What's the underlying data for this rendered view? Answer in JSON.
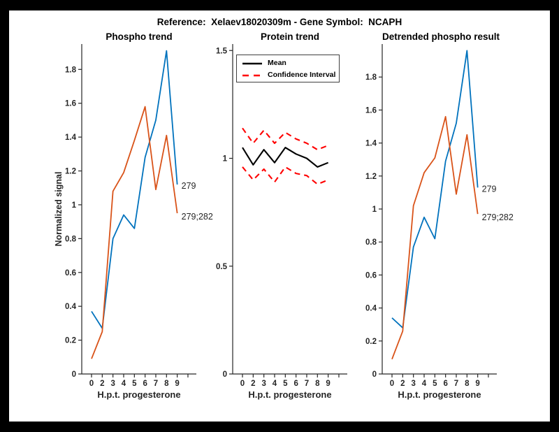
{
  "suptitle": "Reference:  Xelaev18020309m - Gene Symbol:  NCAPH",
  "colors": {
    "page_bg": "#000000",
    "figure_bg": "#FFFFFF",
    "axis_text": "#262626",
    "series_blue": "#0072BD",
    "series_orange": "#D95319",
    "ci_red": "#FF0000",
    "mean_black": "#000000"
  },
  "chart_data": [
    {
      "type": "line",
      "title": "Phospho trend",
      "xlabel": "H.p.t. progesterone",
      "ylabel": "Normalized signal",
      "x_tick_labels": [
        "0",
        "2",
        "3",
        "4",
        "5",
        "6",
        "7",
        "8",
        "9"
      ],
      "ylim": [
        0,
        1.95
      ],
      "yticks": [
        0,
        0.2,
        0.4,
        0.6,
        0.8,
        1,
        1.2,
        1.4,
        1.6,
        1.8
      ],
      "grid": false,
      "legend_position": "none",
      "series": [
        {
          "name": "279",
          "color": "#0072BD",
          "style": "solid",
          "end_label": "279",
          "values": [
            0.37,
            0.27,
            0.8,
            0.94,
            0.86,
            1.28,
            1.5,
            1.91,
            1.12
          ]
        },
        {
          "name": "279;282",
          "color": "#D95319",
          "style": "solid",
          "end_label": "279;282",
          "values": [
            0.09,
            0.25,
            1.08,
            1.19,
            1.38,
            1.58,
            1.09,
            1.41,
            0.95
          ]
        }
      ]
    },
    {
      "type": "line",
      "title": "Protein trend",
      "xlabel": "H.p.t. progesterone",
      "ylabel": "",
      "x_tick_labels": [
        "0",
        "2",
        "3",
        "4",
        "5",
        "6",
        "7",
        "8",
        "9"
      ],
      "ylim": [
        0,
        1.53
      ],
      "yticks": [
        0,
        0.5,
        1,
        1.5
      ],
      "grid": false,
      "legend_position": "northwest",
      "legend": {
        "items": [
          {
            "label": "Mean",
            "color": "#000000",
            "style": "solid"
          },
          {
            "label": "Confidence Interval",
            "color": "#FF0000",
            "style": "dashed"
          }
        ]
      },
      "series": [
        {
          "name": "Mean",
          "color": "#000000",
          "style": "solid",
          "values": [
            1.05,
            0.97,
            1.04,
            0.98,
            1.05,
            1.02,
            1.0,
            0.96,
            0.98
          ]
        },
        {
          "name": "Confidence Interval upper",
          "color": "#FF0000",
          "style": "dashed",
          "values": [
            1.14,
            1.07,
            1.13,
            1.07,
            1.12,
            1.09,
            1.07,
            1.04,
            1.06
          ]
        },
        {
          "name": "Confidence Interval lower",
          "color": "#FF0000",
          "style": "dashed",
          "values": [
            0.96,
            0.9,
            0.95,
            0.89,
            0.96,
            0.93,
            0.92,
            0.88,
            0.9
          ]
        }
      ]
    },
    {
      "type": "line",
      "title": "Detrended phospho result",
      "xlabel": "H.p.t. progesterone",
      "ylabel": "",
      "x_tick_labels": [
        "0",
        "2",
        "3",
        "4",
        "5",
        "6",
        "7",
        "8",
        "9"
      ],
      "ylim": [
        0,
        2.0
      ],
      "yticks": [
        0,
        0.2,
        0.4,
        0.6,
        0.8,
        1,
        1.2,
        1.4,
        1.6,
        1.8
      ],
      "grid": false,
      "legend_position": "none",
      "series": [
        {
          "name": "279",
          "color": "#0072BD",
          "style": "solid",
          "end_label": "279",
          "values": [
            0.34,
            0.28,
            0.77,
            0.95,
            0.82,
            1.29,
            1.52,
            1.96,
            1.13
          ]
        },
        {
          "name": "279;282",
          "color": "#D95319",
          "style": "solid",
          "end_label": "279;282",
          "values": [
            0.09,
            0.26,
            1.02,
            1.22,
            1.31,
            1.56,
            1.09,
            1.45,
            0.97
          ]
        }
      ]
    }
  ]
}
